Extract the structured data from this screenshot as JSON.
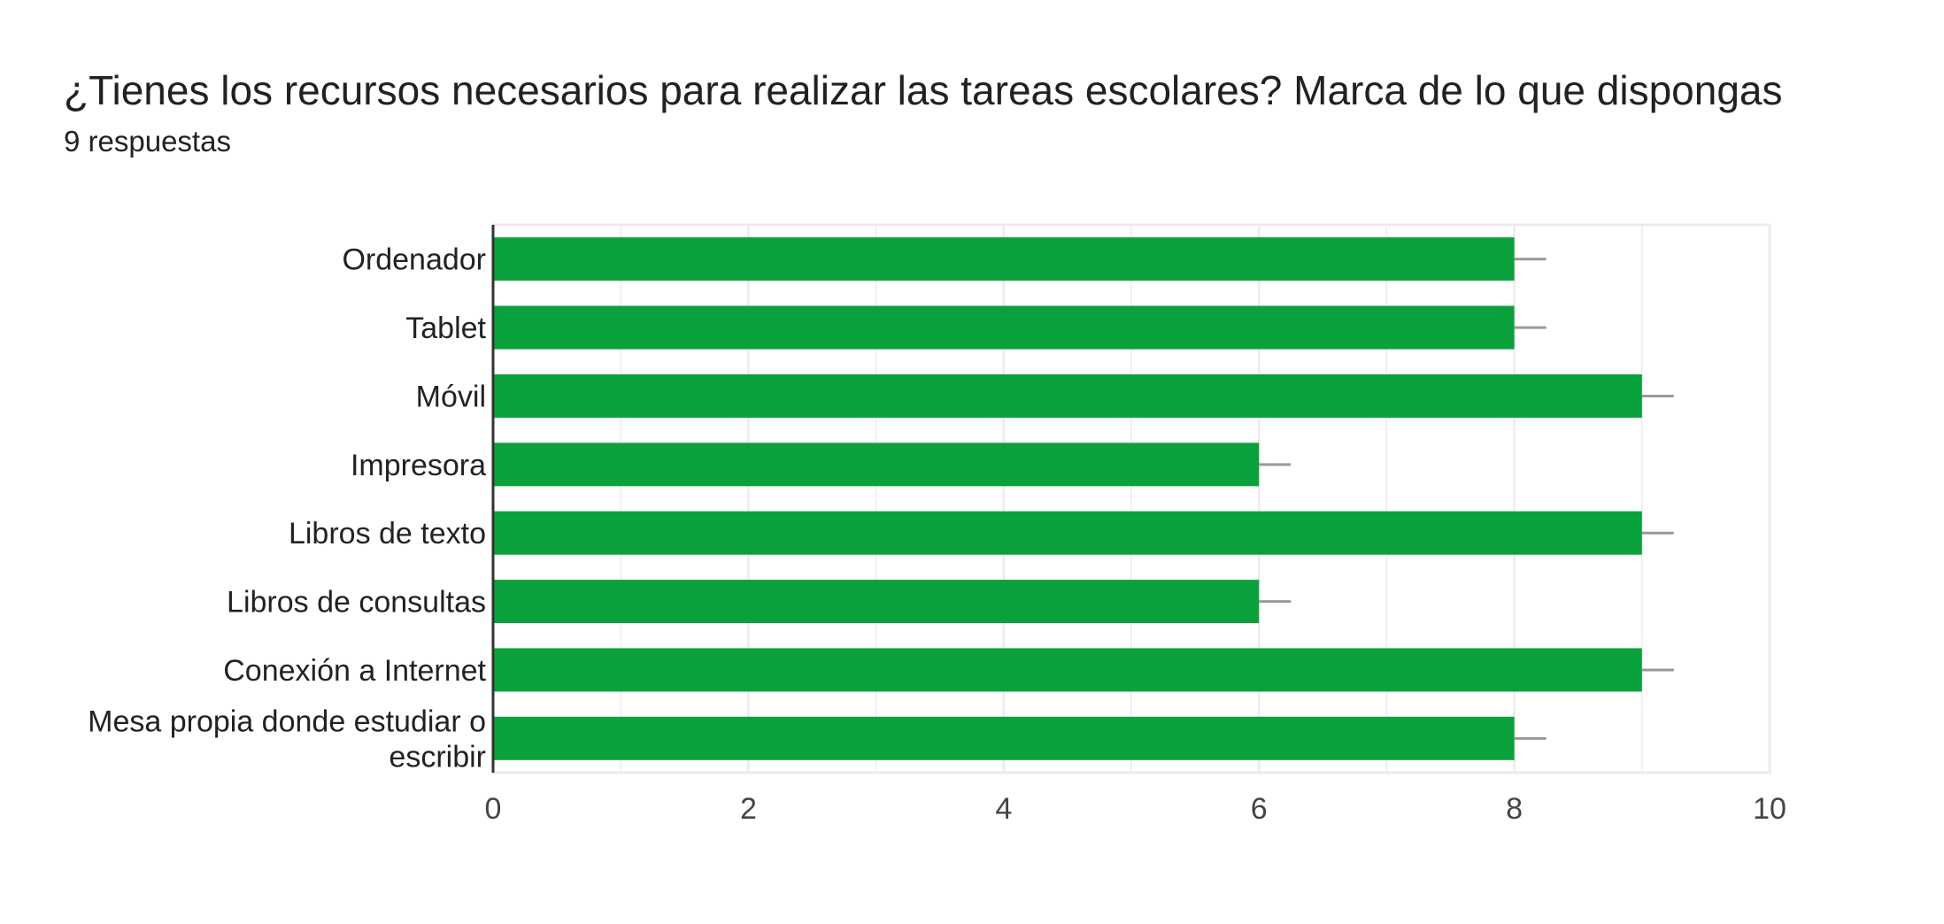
{
  "header": {
    "title": "¿Tienes los recursos necesarios para realizar las tareas escolares? Marca de lo que dispongas",
    "response_count": "9 respuestas"
  },
  "colors": {
    "bar": "#0aa13c",
    "grid": "#ebebeb",
    "axis": "#333333",
    "error_bar": "#999999"
  },
  "chart_data": {
    "type": "bar",
    "orientation": "horizontal",
    "categories": [
      [
        "Ordenador"
      ],
      [
        "Tablet"
      ],
      [
        "Móvil"
      ],
      [
        "Impresora"
      ],
      [
        "Libros de texto"
      ],
      [
        "Libros de consultas"
      ],
      [
        "Conexión a Internet"
      ],
      [
        "Mesa propia donde estudiar o",
        "escribir"
      ]
    ],
    "values": [
      8,
      8,
      9,
      6,
      9,
      6,
      9,
      8
    ],
    "xlim": [
      0,
      10
    ],
    "x_ticks": [
      0,
      2,
      4,
      6,
      8,
      10
    ],
    "grid": true,
    "error_bars": true
  }
}
